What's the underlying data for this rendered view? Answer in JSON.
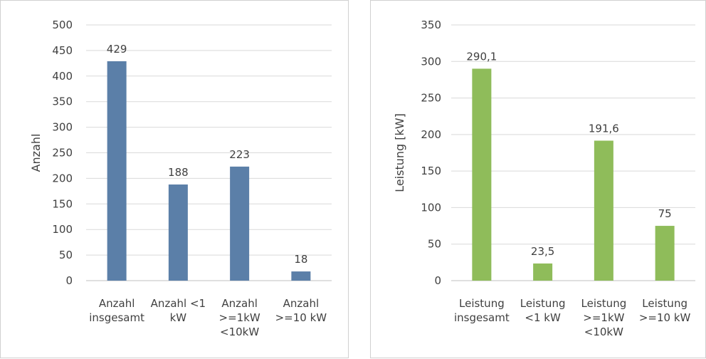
{
  "chart_data": [
    {
      "type": "bar",
      "ylabel": "Anzahl",
      "xlabel": "",
      "title": "",
      "ylim": [
        0,
        500
      ],
      "yticks": [
        0,
        50,
        100,
        150,
        200,
        250,
        300,
        350,
        400,
        450,
        500
      ],
      "grid": true,
      "color": "#5b7fa8",
      "categories": [
        [
          "Anzahl",
          "insgesamt"
        ],
        [
          "Anzahl <1",
          "kW"
        ],
        [
          "Anzahl",
          ">=1kW",
          "<10kW"
        ],
        [
          "Anzahl",
          ">=10 kW"
        ]
      ],
      "values": [
        429,
        188,
        223,
        18
      ],
      "value_labels": [
        "429",
        "188",
        "223",
        "18"
      ]
    },
    {
      "type": "bar",
      "ylabel": "Leistung [kW]",
      "xlabel": "",
      "title": "",
      "ylim": [
        0,
        350
      ],
      "yticks": [
        0,
        50,
        100,
        150,
        200,
        250,
        300,
        350
      ],
      "grid": true,
      "color": "#8fbc5a",
      "categories": [
        [
          "Leistung",
          "insgesamt"
        ],
        [
          "Leistung",
          "<1 kW"
        ],
        [
          "Leistung",
          ">=1kW",
          "<10kW"
        ],
        [
          "Leistung",
          ">=10 kW"
        ]
      ],
      "values": [
        290.1,
        23.5,
        191.6,
        75
      ],
      "value_labels": [
        "290,1",
        "23,5",
        "191,6",
        "75"
      ]
    }
  ]
}
